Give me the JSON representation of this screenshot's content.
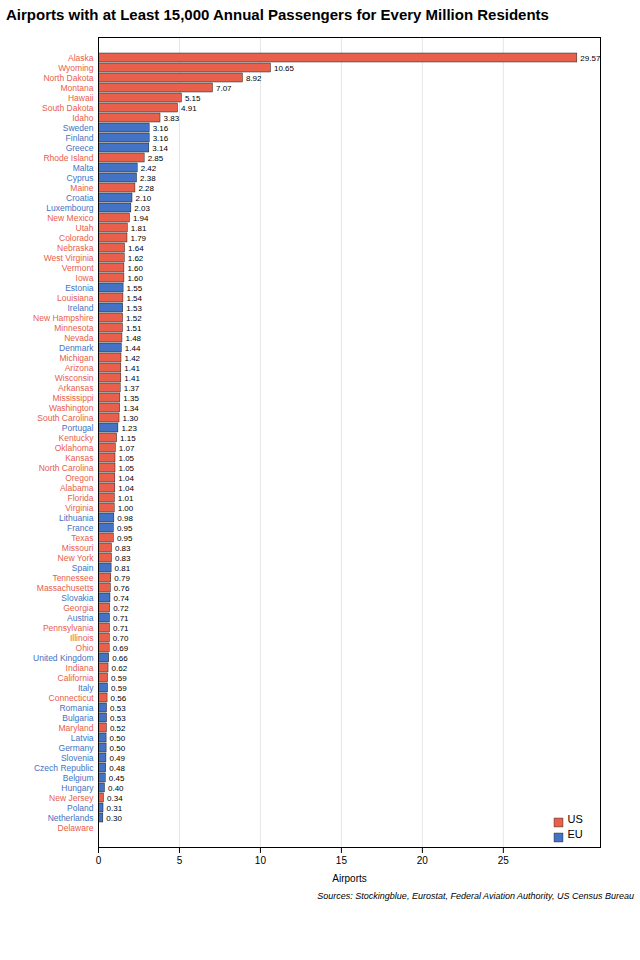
{
  "chart_data": {
    "type": "bar",
    "orientation": "horizontal",
    "title": "Airports with at Least 15,000 Annual Passengers for Every Million Residents",
    "xlabel": "Airports",
    "source": "Sources: Stockingblue, Eurostat, Federal Aviation Authority, US Census Bureau",
    "categories": [
      "Alaska",
      "Wyoming",
      "North Dakota",
      "Montana",
      "Hawaii",
      "South Dakota",
      "Idaho",
      "Sweden",
      "Finland",
      "Greece",
      "Rhode Island",
      "Malta",
      "Cyprus",
      "Maine",
      "Croatia",
      "Luxembourg",
      "New Mexico",
      "Utah",
      "Colorado",
      "Nebraska",
      "West Virginia",
      "Vermont",
      "Iowa",
      "Estonia",
      "Louisiana",
      "Ireland",
      "New Hampshire",
      "Minnesota",
      "Nevada",
      "Denmark",
      "Michigan",
      "Arizona",
      "Wisconsin",
      "Arkansas",
      "Mississippi",
      "Washington",
      "South Carolina",
      "Portugal",
      "Kentucky",
      "Oklahoma",
      "Kansas",
      "North Carolina",
      "Oregon",
      "Alabama",
      "Florida",
      "Virginia",
      "Lithuania",
      "France",
      "Texas",
      "Missouri",
      "New York",
      "Spain",
      "Tennessee",
      "Massachusetts",
      "Slovakia",
      "Georgia",
      "Austria",
      "Pennsylvania",
      "Illinois",
      "Ohio",
      "United Kingdom",
      "Indiana",
      "California",
      "Italy",
      "Connecticut",
      "Romania",
      "Bulgaria",
      "Maryland",
      "Latvia",
      "Germany",
      "Slovenia",
      "Czech Republic",
      "Belgium",
      "Hungary",
      "New Jersey",
      "Poland",
      "Netherlands",
      "Delaware"
    ],
    "series": [
      {
        "name": "US",
        "color": "#e8604c",
        "values": [
          29.57,
          10.65,
          8.92,
          7.07,
          5.15,
          4.91,
          3.83,
          null,
          null,
          null,
          2.85,
          null,
          null,
          2.28,
          null,
          null,
          1.94,
          1.81,
          1.79,
          1.64,
          1.62,
          1.6,
          1.6,
          null,
          1.54,
          null,
          1.52,
          1.51,
          1.48,
          null,
          1.42,
          1.41,
          1.41,
          1.37,
          1.35,
          1.34,
          1.3,
          null,
          1.15,
          1.07,
          1.05,
          1.05,
          1.04,
          1.04,
          1.01,
          1.0,
          null,
          null,
          0.95,
          0.83,
          0.83,
          null,
          0.79,
          0.76,
          null,
          0.72,
          null,
          0.71,
          0.7,
          0.69,
          null,
          0.62,
          0.59,
          null,
          0.56,
          null,
          null,
          0.52,
          null,
          null,
          null,
          null,
          null,
          null,
          0.34,
          null,
          null,
          0.0
        ],
        "value_labels": [
          "29.57",
          "10.65",
          "8.92",
          "7.07",
          "5.15",
          "4.91",
          "3.83",
          null,
          null,
          null,
          "2.85",
          null,
          null,
          "2.28",
          null,
          null,
          "1.94",
          "1.81",
          "1.79",
          "1.64",
          "1.62",
          "1.60",
          "1.60",
          null,
          "1.54",
          null,
          "1.52",
          "1.51",
          "1.48",
          null,
          "1.42",
          "1.41",
          "1.41",
          "1.37",
          "1.35",
          "1.34",
          "1.30",
          null,
          "1.15",
          "1.07",
          "1.05",
          "1.05",
          "1.04",
          "1.04",
          "1.01",
          "1.00",
          null,
          null,
          "0.95",
          "0.83",
          "0.83",
          null,
          "0.79",
          "0.76",
          null,
          "0.72",
          null,
          "0.71",
          "0.70",
          "0.69",
          null,
          "0.62",
          "0.59",
          null,
          "0.56",
          null,
          null,
          "0.52",
          null,
          null,
          null,
          null,
          null,
          null,
          "0.34",
          null,
          null,
          null
        ]
      },
      {
        "name": "EU",
        "color": "#4472c4",
        "values": [
          null,
          null,
          null,
          null,
          null,
          null,
          null,
          3.16,
          3.16,
          3.14,
          null,
          2.42,
          2.38,
          null,
          2.1,
          2.03,
          null,
          null,
          null,
          null,
          null,
          null,
          null,
          1.55,
          null,
          1.53,
          null,
          null,
          null,
          1.44,
          null,
          null,
          null,
          null,
          null,
          null,
          null,
          1.23,
          null,
          null,
          null,
          null,
          null,
          null,
          null,
          null,
          0.98,
          0.95,
          null,
          null,
          null,
          0.81,
          null,
          null,
          0.74,
          null,
          0.71,
          null,
          null,
          null,
          0.66,
          null,
          null,
          0.59,
          null,
          0.53,
          0.53,
          null,
          0.5,
          0.5,
          0.49,
          0.48,
          0.45,
          0.4,
          null,
          0.31,
          0.3,
          null
        ],
        "value_labels": [
          null,
          null,
          null,
          null,
          null,
          null,
          null,
          "3.16",
          "3.16",
          "3.14",
          null,
          "2.42",
          "2.38",
          null,
          "2.10",
          "2.03",
          null,
          null,
          null,
          null,
          null,
          null,
          null,
          "1.55",
          null,
          "1.53",
          null,
          null,
          null,
          "1.44",
          null,
          null,
          null,
          null,
          null,
          null,
          null,
          "1.23",
          null,
          null,
          null,
          null,
          null,
          null,
          null,
          null,
          "0.98",
          "0.95",
          null,
          null,
          null,
          "0.81",
          null,
          null,
          "0.74",
          null,
          "0.71",
          null,
          null,
          null,
          "0.66",
          null,
          null,
          "0.59",
          null,
          "0.53",
          "0.53",
          null,
          "0.50",
          "0.50",
          "0.49",
          "0.48",
          "0.45",
          "0.40",
          null,
          "0.31",
          "0.30",
          null
        ]
      }
    ],
    "xlim": [
      0,
      31
    ],
    "xticks": [
      0,
      5,
      10,
      15,
      20,
      25
    ],
    "grid": true,
    "legend": "lower right",
    "data_labels": true
  }
}
